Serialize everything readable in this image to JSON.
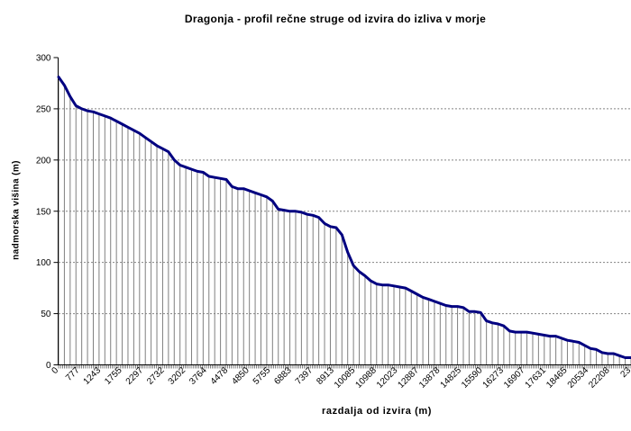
{
  "chart_data": {
    "type": "line",
    "title": "Dragonja - profil rečne struge od izvira do izliva v morje",
    "xlabel": "razdalja od izvira (m)",
    "ylabel": "nadmorska višina (m)",
    "ylim": [
      0,
      300
    ],
    "y_tick_labels": [
      "0",
      "50",
      "100",
      "150",
      "200",
      "250",
      "300"
    ],
    "y_ticks": [
      0,
      50,
      100,
      150,
      200,
      250,
      300
    ],
    "gridlines": [
      50,
      100,
      150,
      200,
      250
    ],
    "x_tick_labels": [
      "0",
      "777",
      "1243",
      "1755",
      "2297",
      "2732",
      "3202",
      "3764",
      "4478",
      "4850",
      "5755",
      "6883",
      "7397",
      "8913",
      "10085",
      "10988",
      "12023",
      "12887",
      "13878",
      "14825",
      "15590",
      "16273",
      "16907",
      "17631",
      "18465",
      "20534",
      "22208",
      "23"
    ],
    "series": [
      {
        "name": "profil rečne struge",
        "values": [
          281,
          273,
          262,
          253,
          250,
          248,
          247,
          245,
          243,
          241,
          238,
          235,
          232,
          229,
          226,
          222,
          218,
          214,
          211,
          208,
          200,
          195,
          193,
          191,
          189,
          188,
          184,
          183,
          182,
          181,
          174,
          172,
          172,
          170,
          168,
          166,
          164,
          160,
          152,
          151,
          150,
          150,
          149,
          147,
          146,
          144,
          138,
          135,
          134,
          127,
          110,
          97,
          91,
          87,
          82,
          79,
          78,
          78,
          77,
          76,
          75,
          72,
          69,
          66,
          64,
          62,
          60,
          58,
          57,
          57,
          56,
          52,
          52,
          51,
          43,
          41,
          40,
          38,
          33,
          32,
          32,
          32,
          31,
          30,
          29,
          28,
          28,
          26,
          24,
          23,
          22,
          19,
          16,
          15,
          12,
          11,
          11,
          9,
          7,
          7
        ]
      }
    ],
    "legend": "none",
    "grid_style": "horizontal-dashed",
    "line_color": "#000080",
    "drop_lines": true,
    "drop_line_color": "#808080",
    "gridline_color": "#848484",
    "axis_color": "#000000",
    "background_color": "#ffffff"
  }
}
